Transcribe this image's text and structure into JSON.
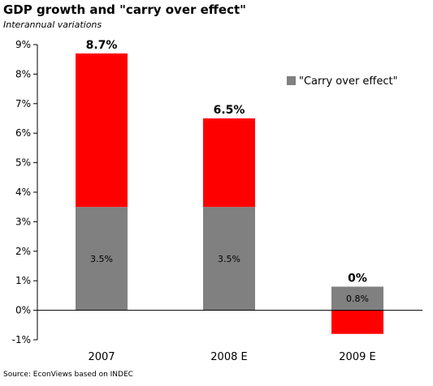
{
  "title": "GDP growth and \"carry over effect\"",
  "subtitle": "Interannual variations",
  "source": "Source: EconViews based on INDEC",
  "colors": {
    "carry_over": "#808080",
    "growth": "#ff0000",
    "axis": "#000000"
  },
  "chart_data": {
    "type": "bar",
    "stacked": true,
    "categories": [
      "2007",
      "2008 E",
      "2009 E"
    ],
    "series": [
      {
        "name": "\"Carry over effect\"",
        "values": [
          3.5,
          3.5,
          0.8
        ],
        "labels": [
          "3.5%",
          "3.5%",
          "0.8%"
        ],
        "color": "#808080"
      },
      {
        "values": [
          5.2,
          3.0,
          -0.8
        ],
        "color": "#ff0000"
      }
    ],
    "totals": [
      8.7,
      6.5,
      0
    ],
    "total_labels": [
      "8.7%",
      "6.5%",
      "0%"
    ],
    "y_ticks": [
      -1,
      0,
      1,
      2,
      3,
      4,
      5,
      6,
      7,
      8,
      9
    ],
    "y_tick_labels": [
      "-1%",
      "0%",
      "1%",
      "2%",
      "3%",
      "4%",
      "5%",
      "6%",
      "7%",
      "8%",
      "9%"
    ],
    "ylim": [
      -1,
      9
    ],
    "grid": false,
    "legend": {
      "position": "top-right",
      "entries": [
        "\"Carry over effect\""
      ]
    }
  }
}
